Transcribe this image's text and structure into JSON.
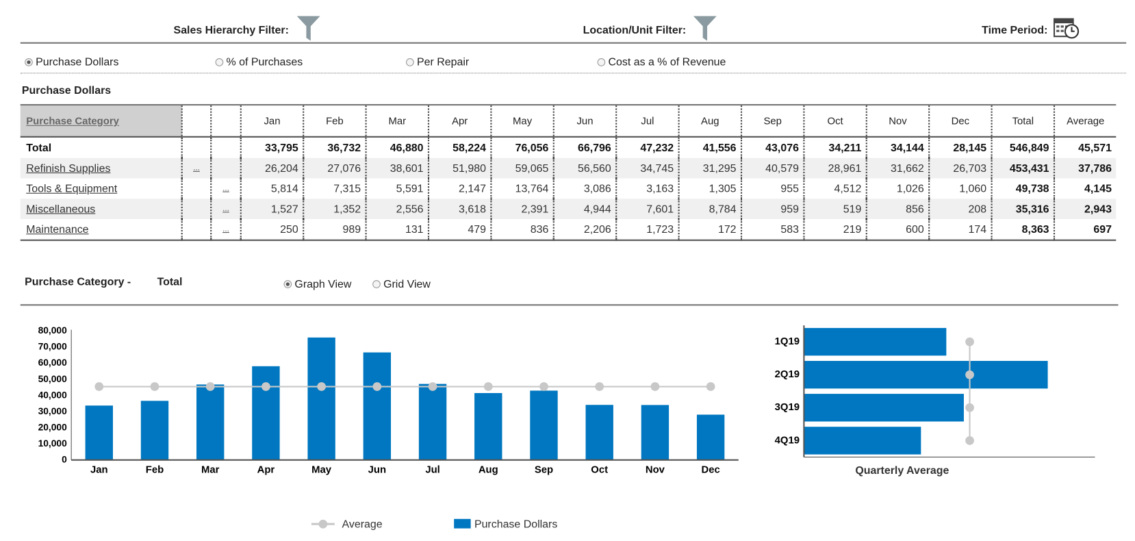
{
  "filters": [
    "Sales Hierarchy Filter:",
    "Location/Unit Filter:",
    "Time Period:"
  ],
  "measures": {
    "options": [
      "Purchase Dollars",
      "% of Purchases",
      "Per Repair",
      "Cost as a % of Revenue"
    ],
    "selected": 0
  },
  "section_title": "Purchase Dollars",
  "table": {
    "header": [
      "Purchase Category",
      "Jan",
      "Feb",
      "Mar",
      "Apr",
      "May",
      "Jun",
      "Jul",
      "Aug",
      "Sep",
      "Oct",
      "Nov",
      "Dec",
      "Total",
      "Average"
    ],
    "rows": [
      {
        "label": "Total",
        "values": [
          "33,795",
          "36,732",
          "46,880",
          "58,224",
          "76,056",
          "66,796",
          "47,232",
          "41,556",
          "43,076",
          "34,211",
          "34,144",
          "28,145",
          "546,849",
          "45,571"
        ]
      },
      {
        "label": "Refinish Supplies",
        "level1": "...",
        "values": [
          "26,204",
          "27,076",
          "38,601",
          "51,980",
          "59,065",
          "56,560",
          "34,745",
          "31,295",
          "40,579",
          "28,961",
          "31,662",
          "26,703",
          "453,431",
          "37,786"
        ]
      },
      {
        "label": "Tools & Equipment",
        "level2": "...",
        "values": [
          "5,814",
          "7,315",
          "5,591",
          "2,147",
          "13,764",
          "3,086",
          "3,163",
          "1,305",
          "955",
          "4,512",
          "1,026",
          "1,060",
          "49,738",
          "4,145"
        ]
      },
      {
        "label": "Miscellaneous",
        "level2": "...",
        "values": [
          "1,527",
          "1,352",
          "2,556",
          "3,618",
          "2,391",
          "4,944",
          "7,601",
          "8,784",
          "959",
          "519",
          "856",
          "208",
          "35,316",
          "2,943"
        ]
      },
      {
        "label": "Maintenance",
        "level2": "...",
        "values": [
          "250",
          "989",
          "131",
          "479",
          "836",
          "2,206",
          "1,723",
          "172",
          "583",
          "219",
          "600",
          "174",
          "8,363",
          "697"
        ]
      }
    ]
  },
  "detail": {
    "label": "Purchase Category -",
    "selection": "Total",
    "views": [
      "Graph View",
      "Grid View"
    ],
    "selected": 0
  },
  "chart_data": [
    {
      "type": "bar",
      "categories": [
        "Jan",
        "Feb",
        "Mar",
        "Apr",
        "May",
        "Jun",
        "Jul",
        "Aug",
        "Sep",
        "Oct",
        "Nov",
        "Dec"
      ],
      "series": [
        {
          "name": "Average",
          "type": "line",
          "color": "#c8c8c8",
          "values": [
            45571,
            45571,
            45571,
            45571,
            45571,
            45571,
            45571,
            45571,
            45571,
            45571,
            45571,
            45571
          ]
        },
        {
          "name": "Purchase Dollars",
          "type": "bar",
          "color": "#0077c0",
          "values": [
            33795,
            36732,
            46880,
            58224,
            76056,
            66796,
            47232,
            41556,
            43076,
            34211,
            34144,
            28145
          ]
        }
      ],
      "ylim": [
        0,
        80000
      ],
      "yticks": [
        0,
        {
          "value": 10000,
          "label": "10,000"
        },
        {
          "value": 20000,
          "label": "20,000"
        },
        {
          "value": 30000,
          "label": "30,000"
        },
        {
          "value": 40000,
          "label": "40,000"
        },
        {
          "value": 50000,
          "label": "50,000"
        },
        {
          "value": 60000,
          "label": "60,000"
        },
        {
          "value": 70000,
          "label": "70,000"
        },
        {
          "value": 80000,
          "label": "80,000"
        }
      ],
      "legend": "bottom"
    },
    {
      "type": "hbar",
      "categories": [
        "1Q19",
        "2Q19",
        "3Q19",
        "4Q19"
      ],
      "series": [
        {
          "type": "bar",
          "color": "#0077c0",
          "values": [
            117407,
            201076,
            131864,
            96500
          ]
        },
        {
          "name": "Quarterly Average",
          "type": "line",
          "color": "#c8c8c8",
          "values": [
            136712,
            136712,
            136712,
            136712
          ]
        }
      ],
      "xlim": [
        0,
        240000
      ]
    }
  ]
}
